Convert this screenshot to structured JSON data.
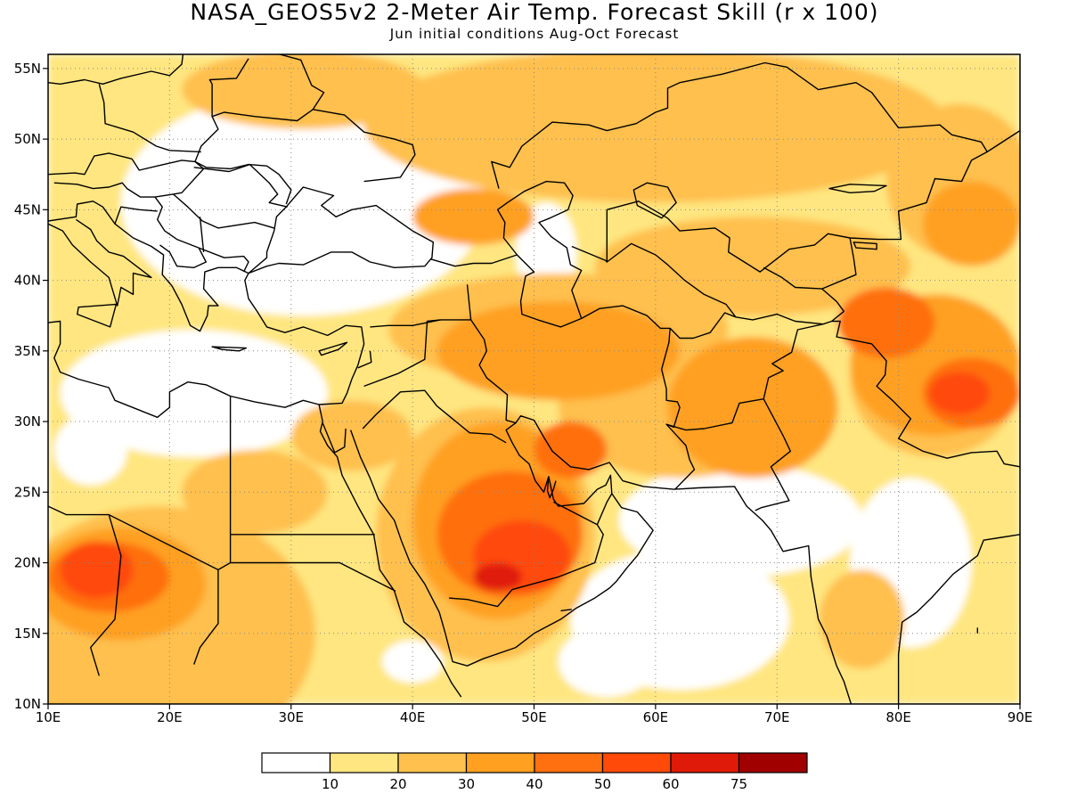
{
  "title": "NASA_GEOS5v2 2-Meter Air Temp. Forecast Skill (r x 100)",
  "subtitle": "Jun initial conditions   Aug-Oct Forecast",
  "map": {
    "lon_range": [
      10,
      90
    ],
    "lat_range": [
      10,
      56
    ],
    "lon_ticks": [
      "10E",
      "20E",
      "30E",
      "40E",
      "50E",
      "60E",
      "70E",
      "80E",
      "90E"
    ],
    "lat_ticks": [
      "10N",
      "15N",
      "20N",
      "25N",
      "30N",
      "35N",
      "40N",
      "45N",
      "50N",
      "55N"
    ],
    "grid": "dotted"
  },
  "colorbar": {
    "labels": [
      "10",
      "20",
      "30",
      "40",
      "50",
      "60",
      "75"
    ],
    "colors": [
      "#ffffff",
      "#ffe680",
      "#ffc04d",
      "#ffa020",
      "#ff7010",
      "#ff4a0a",
      "#e01a08",
      "#a00000"
    ]
  },
  "skill_regions": [
    {
      "level": 1,
      "lon": 31.0,
      "lat": 53.5,
      "rlon": 10.0,
      "rlat": 2.8
    },
    {
      "level": 1,
      "lon": 60.0,
      "lat": 51.0,
      "rlon": 24.0,
      "rlat": 5.5
    },
    {
      "level": 1,
      "lon": 68.0,
      "lat": 41.0,
      "rlon": 13.0,
      "rlat": 3.5
    },
    {
      "level": 1,
      "lon": 85.0,
      "lat": 47.0,
      "rlon": 6.0,
      "rlat": 5.5
    },
    {
      "level": 1,
      "lon": 19.0,
      "lat": 15.0,
      "rlon": 13.0,
      "rlat": 9.0
    },
    {
      "level": 1,
      "lon": 27.0,
      "lat": 25.0,
      "rlon": 6.0,
      "rlat": 3.0
    },
    {
      "level": 1,
      "lon": 35.0,
      "lat": 29.0,
      "rlon": 5.0,
      "rlat": 2.5
    },
    {
      "level": 1,
      "lon": 52.0,
      "lat": 36.5,
      "rlon": 14.0,
      "rlat": 4.0
    },
    {
      "level": 1,
      "lon": 62.0,
      "lat": 31.0,
      "rlon": 10.0,
      "rlat": 5.0
    },
    {
      "level": 1,
      "lon": 46.0,
      "lat": 22.0,
      "rlon": 9.0,
      "rlat": 9.0
    },
    {
      "level": 1,
      "lon": 77.0,
      "lat": 16.0,
      "rlon": 3.5,
      "rlat": 3.5
    },
    {
      "level": 1,
      "lon": 83.0,
      "lat": 33.0,
      "rlon": 7.0,
      "rlat": 5.5
    },
    {
      "level": 2,
      "lon": 45.0,
      "lat": 44.5,
      "rlon": 5.0,
      "rlat": 2.0
    },
    {
      "level": 2,
      "lon": 52.0,
      "lat": 35.0,
      "rlon": 10.0,
      "rlat": 3.5
    },
    {
      "level": 2,
      "lon": 47.0,
      "lat": 23.0,
      "rlon": 7.0,
      "rlat": 7.0
    },
    {
      "level": 2,
      "lon": 68.0,
      "lat": 31.0,
      "rlon": 7.0,
      "rlat": 5.0
    },
    {
      "level": 2,
      "lon": 16.0,
      "lat": 18.5,
      "rlon": 7.0,
      "rlat": 4.0
    },
    {
      "level": 2,
      "lon": 83.0,
      "lat": 34.0,
      "rlon": 7.0,
      "rlat": 5.0
    },
    {
      "level": 2,
      "lon": 86.0,
      "lat": 44.0,
      "rlon": 4.0,
      "rlat": 3.0
    },
    {
      "level": 3,
      "lon": 48.0,
      "lat": 22.0,
      "rlon": 6.0,
      "rlat": 4.5
    },
    {
      "level": 3,
      "lon": 15.0,
      "lat": 19.0,
      "rlon": 5.0,
      "rlat": 2.5
    },
    {
      "level": 3,
      "lon": 79.0,
      "lat": 37.0,
      "rlon": 4.0,
      "rlat": 2.5
    },
    {
      "level": 3,
      "lon": 86.0,
      "lat": 32.0,
      "rlon": 4.0,
      "rlat": 2.5
    },
    {
      "level": 3,
      "lon": 53.0,
      "lat": 28.0,
      "rlon": 3.0,
      "rlat": 2.0
    },
    {
      "level": 4,
      "lon": 49.0,
      "lat": 20.5,
      "rlon": 4.0,
      "rlat": 2.5
    },
    {
      "level": 4,
      "lon": 14.0,
      "lat": 19.5,
      "rlon": 3.0,
      "rlat": 2.0
    },
    {
      "level": 4,
      "lon": 85.0,
      "lat": 32.0,
      "rlon": 2.5,
      "rlat": 1.5
    },
    {
      "level": 5,
      "lon": 47.0,
      "lat": 19.0,
      "rlon": 2.0,
      "rlat": 1.0
    }
  ],
  "blank_regions": [
    {
      "lon": 31.0,
      "lat": 45.5,
      "rlon": 15.0,
      "rlat": 8.0
    },
    {
      "lon": 22.0,
      "lat": 32.0,
      "rlon": 11.0,
      "rlat": 4.5
    },
    {
      "lon": 67.0,
      "lat": 23.0,
      "rlon": 10.0,
      "rlat": 4.0
    },
    {
      "lon": 81.0,
      "lat": 20.0,
      "rlon": 5.0,
      "rlat": 6.0
    },
    {
      "lon": 62.0,
      "lat": 16.0,
      "rlon": 9.0,
      "rlat": 5.0
    },
    {
      "lon": 51.0,
      "lat": 42.0,
      "rlon": 2.5,
      "rlat": 3.5
    },
    {
      "lon": 13.5,
      "lat": 28.0,
      "rlon": 3.0,
      "rlat": 2.5
    },
    {
      "lon": 56.0,
      "lat": 13.0,
      "rlon": 4.0,
      "rlat": 2.5
    },
    {
      "lon": 40.0,
      "lat": 13.0,
      "rlon": 2.5,
      "rlat": 1.5
    }
  ]
}
